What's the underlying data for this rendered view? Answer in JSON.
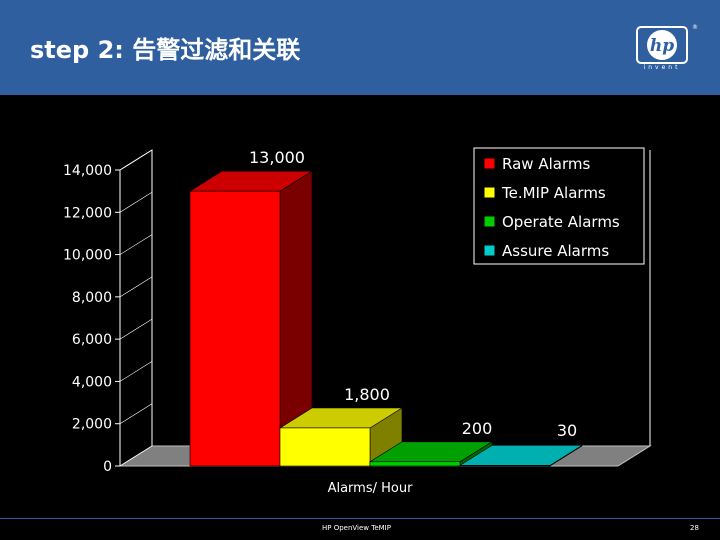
{
  "slide": {
    "title": "step 2: 告警过滤和关联",
    "logo_text": "hp",
    "logo_subtext": "invent",
    "logo_mark": "®",
    "footer": "HP OpenView TeMIP",
    "page_number": "28"
  },
  "colors": {
    "header_bg": "#2f5f9e",
    "background": "#000000"
  },
  "chart_data": {
    "type": "bar",
    "xlabel": "Alarms/ Hour",
    "ylabel": "",
    "ylim": [
      0,
      14000
    ],
    "yticks": [
      0,
      2000,
      4000,
      6000,
      8000,
      10000,
      12000,
      14000
    ],
    "ytick_labels": [
      "0",
      "2,000",
      "4,000",
      "6,000",
      "8,000",
      "10,000",
      "12,000",
      "14,000"
    ],
    "grid": false,
    "legend_position": "top-right",
    "series": [
      {
        "name": "Raw  Alarms",
        "value": 13000,
        "label": "13,000",
        "color": "#ff0000",
        "side_color": "#7a0000",
        "top_color": "#cc0000"
      },
      {
        "name": "Te.MIP Alarms",
        "value": 1800,
        "label": "1,800",
        "color": "#ffff00",
        "side_color": "#7f7f00",
        "top_color": "#cccc00"
      },
      {
        "name": "Operate Alarms",
        "value": 200,
        "label": "200",
        "color": "#00cc00",
        "side_color": "#006600",
        "top_color": "#00a000"
      },
      {
        "name": "Assure Alarms",
        "value": 30,
        "label": "30",
        "color": "#00cccc",
        "side_color": "#006666",
        "top_color": "#00b0b0"
      }
    ]
  }
}
